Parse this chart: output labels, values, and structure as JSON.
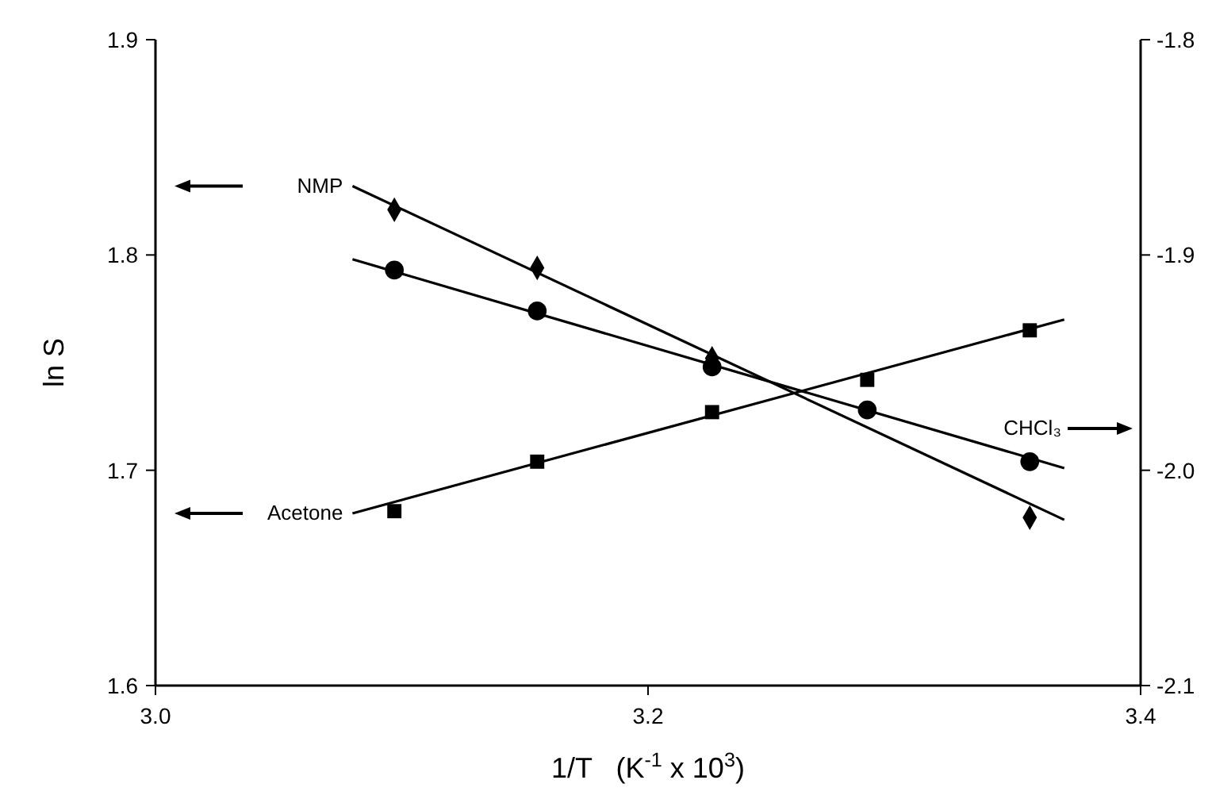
{
  "chart_data": {
    "type": "scatter",
    "xlabel": "1/T   (K$^{-1}$ x 10$^{3}$)",
    "ylabel": "ln S",
    "xlim": [
      3.0,
      3.4
    ],
    "xticks": [
      {
        "value": 3.0,
        "label": "3.0"
      },
      3.2,
      3.4
    ],
    "ylim": [
      1.6,
      1.9
    ],
    "yticks": [
      1.6,
      1.7,
      1.8,
      1.9
    ],
    "y2lim": [
      -2.1,
      -1.8
    ],
    "y2ticks": [
      -2.1,
      {
        "value": -2.0,
        "label": "-2.0"
      },
      -1.9,
      -1.8
    ],
    "series": [
      {
        "marker": "diamond",
        "color": "#000000",
        "x": [
          3.097,
          3.155,
          3.226,
          3.355
        ],
        "values": [
          1.821,
          1.794,
          1.752,
          1.678
        ]
      },
      {
        "type": "line",
        "name": "NMP",
        "color": "#000000",
        "x": [
          3.08,
          3.369
        ],
        "values": [
          1.832,
          1.677
        ]
      },
      {
        "marker": "circle",
        "axis": "y2",
        "color": "#000000",
        "x": [
          3.097,
          3.155,
          3.226,
          3.289,
          3.355
        ],
        "values": [
          -1.907,
          -1.926,
          -1.952,
          -1.972,
          -1.996
        ]
      },
      {
        "type": "line",
        "name": "CHCl₃",
        "axis": "y2",
        "color": "#000000",
        "x": [
          3.08,
          3.369
        ],
        "values": [
          -1.902,
          -1.999
        ]
      },
      {
        "marker": "square",
        "color": "#000000",
        "x": [
          3.097,
          3.155,
          3.226,
          3.289,
          3.355
        ],
        "values": [
          1.681,
          1.704,
          1.727,
          1.742,
          1.765
        ]
      },
      {
        "type": "line",
        "name": "Acetone",
        "color": "#000000",
        "x": [
          3.08,
          3.369
        ],
        "values": [
          1.68,
          1.77
        ]
      }
    ]
  }
}
